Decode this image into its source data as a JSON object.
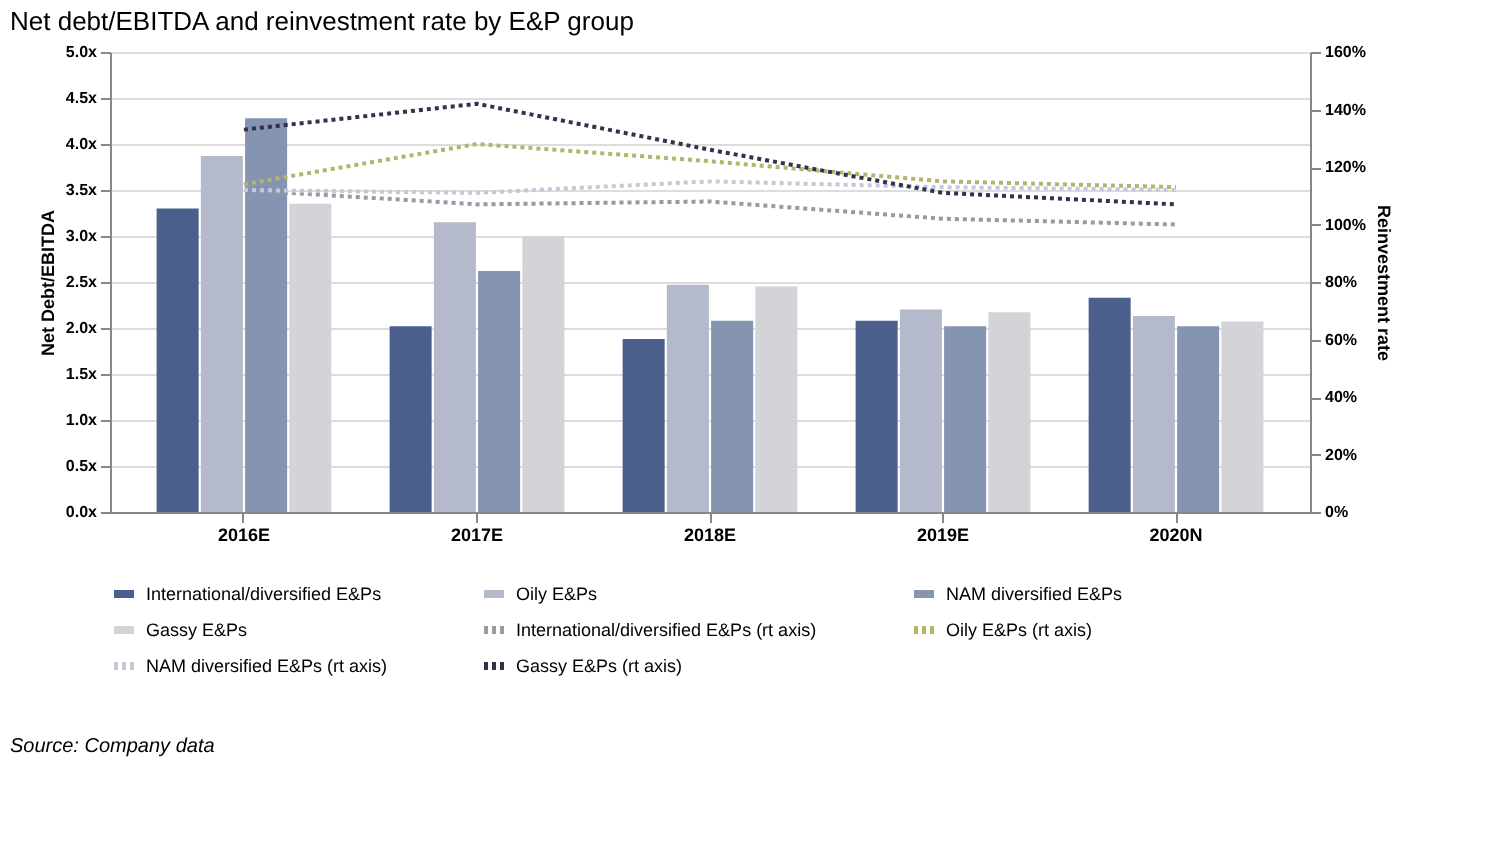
{
  "chart_data": {
    "type": "bar",
    "title": "Net debt/EBITDA and reinvestment rate by E&P group",
    "categories": [
      "2016E",
      "2017E",
      "2018E",
      "2019E",
      "2020N"
    ],
    "ylabel": "Net Debt/EBITDA",
    "y2label": "Reinvestment rate",
    "ylim": [
      0,
      5
    ],
    "yticks": [
      {
        "value": 0,
        "label": "0.0x"
      },
      {
        "value": 0.5,
        "label": "0.5x"
      },
      {
        "value": 1,
        "label": "1.0x"
      },
      {
        "value": 1.5,
        "label": "1.5x"
      },
      {
        "value": 2,
        "label": "2.0x"
      },
      {
        "value": 2.5,
        "label": "2.5x"
      },
      {
        "value": 3,
        "label": "3.0x"
      },
      {
        "value": 3.5,
        "label": "3.5x"
      },
      {
        "value": 4,
        "label": "4.0x"
      },
      {
        "value": 4.5,
        "label": "4.5x"
      },
      {
        "value": 5,
        "label": "5.0x"
      }
    ],
    "y2lim": [
      0,
      160
    ],
    "y2ticks": [
      {
        "value": 0,
        "label": "0%"
      },
      {
        "value": 20,
        "label": "20%"
      },
      {
        "value": 40,
        "label": "40%"
      },
      {
        "value": 60,
        "label": "60%"
      },
      {
        "value": 80,
        "label": "80%"
      },
      {
        "value": 100,
        "label": "100%"
      },
      {
        "value": 120,
        "label": "120%"
      },
      {
        "value": 140,
        "label": "140%"
      },
      {
        "value": 160,
        "label": "160%"
      }
    ],
    "grid": "y",
    "legend": "bottom",
    "series": [
      {
        "name": "International/diversified E&Ps",
        "color": "#4a5f8c",
        "values": [
          3.3,
          2.02,
          1.88,
          2.08,
          2.33
        ]
      },
      {
        "name": "Oily E&Ps",
        "color": "#b4bacb",
        "values": [
          3.87,
          3.15,
          2.47,
          2.2,
          2.13
        ]
      },
      {
        "name": "NAM diversified E&Ps",
        "color": "#8494b1",
        "values": [
          4.28,
          2.62,
          2.08,
          2.02,
          2.02
        ]
      },
      {
        "name": "Gassy E&Ps",
        "color": "#d3d4d8",
        "values": [
          3.35,
          3.0,
          2.45,
          2.17,
          2.07
        ]
      },
      {
        "name": "International/diversified E&Ps (rt axis)",
        "type": "line",
        "axis": "y2",
        "line_style": "dotted",
        "color": "#9a9aa2",
        "values": [
          112,
          107,
          108,
          102,
          100
        ]
      },
      {
        "name": "Oily E&Ps (rt axis)",
        "type": "line",
        "axis": "y2",
        "line_style": "dotted",
        "color": "#b5b46e",
        "values": [
          114,
          128,
          122,
          115,
          113
        ]
      },
      {
        "name": "NAM diversified E&Ps (rt axis)",
        "type": "line",
        "axis": "y2",
        "line_style": "dotted",
        "color": "#c4c9d8",
        "values": [
          112,
          111,
          115,
          113,
          112
        ]
      },
      {
        "name": "Gassy E&Ps (rt axis)",
        "type": "line",
        "axis": "y2",
        "line_style": "dotted",
        "color": "#30334a",
        "values": [
          133,
          142,
          126,
          111,
          107
        ]
      }
    ],
    "annotations": [
      "Source: Company data"
    ]
  }
}
